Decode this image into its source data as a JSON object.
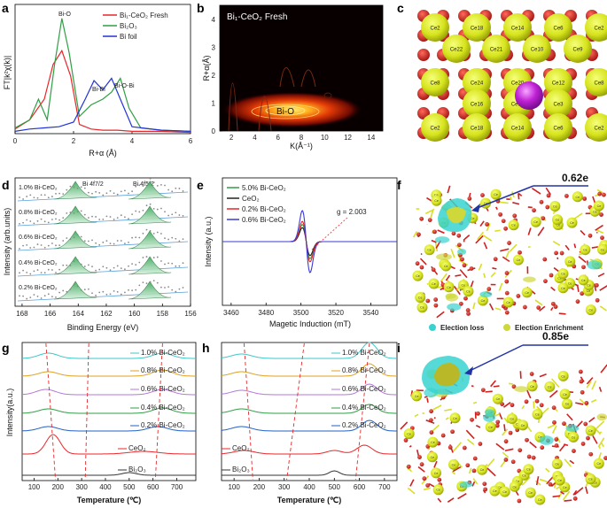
{
  "panels": {
    "a": {
      "letter": "a",
      "ylabel": "FT|k²χ(k)|",
      "xlabel": "R+α (Å)",
      "xticks": [
        "0",
        "2",
        "4",
        "6"
      ],
      "legend": [
        "Bi₁-CeO₂ Fresh",
        "Bi₂O₃",
        "Bi foil"
      ],
      "annotations": [
        "Bi-O",
        "Bi-Bi",
        "Bi-O-Bi"
      ],
      "colors": [
        "#e8262a",
        "#2f9e44",
        "#2233d6"
      ]
    },
    "b": {
      "letter": "b",
      "title": "Bi₁-CeO₂ Fresh",
      "ylabel": "R+α(Å)",
      "xlabel": "K(Å⁻¹)",
      "xticks": [
        "2",
        "4",
        "6",
        "8",
        "10",
        "12",
        "14"
      ],
      "yticks": [
        "0",
        "1",
        "2",
        "3",
        "4"
      ],
      "annotation": "Bi-O"
    },
    "c": {
      "letter": "c",
      "rows": [
        [
          "Ce2",
          "Ce18",
          "Ce14",
          "Ce6",
          "Ce2"
        ],
        [
          "Ce22",
          "Ce21",
          "Ce10",
          "Ce9"
        ],
        [
          "Ce8",
          "Ce24",
          "Ce20",
          "Ce12",
          "Ce8"
        ],
        [
          "Ce16",
          "Ce15",
          "Ce3"
        ],
        [
          "Ce2",
          "Ce18",
          "Ce14",
          "Ce6",
          "Ce2"
        ]
      ]
    },
    "d": {
      "letter": "d",
      "peaks": [
        "Bi 4f7/2",
        "Bi 4f5/2"
      ],
      "ylabel": "Intensity (arb.units)",
      "xlabel": "Binding Energy (eV)",
      "xticks": [
        "168",
        "166",
        "164",
        "162",
        "160",
        "158",
        "156"
      ],
      "samples": [
        "1.0% Bi-CeO₂",
        "0.8% Bi-CeO₂",
        "0.6% Bi-CeO₂",
        "0.4% Bi-CeO₂",
        "0.2% Bi-CeO₂"
      ]
    },
    "e": {
      "letter": "e",
      "ylabel": "Intensity (a.u.)",
      "xlabel": "Magetic Induction (mT)",
      "xticks": [
        "3460",
        "3480",
        "3500",
        "3520",
        "3540"
      ],
      "legend": [
        "5.0% Bi-CeO₂",
        "CeO₂",
        "0.2% Bi-CeO₂",
        "0.6% Bi-CeO₂"
      ],
      "colors": [
        "#2f9e44",
        "#222222",
        "#e8262a",
        "#3b3bd6"
      ],
      "annotation": "g = 2.003"
    },
    "f": {
      "letter": "f",
      "value": "0.62e",
      "legend": [
        "Election loss",
        "Election Enrichment"
      ]
    },
    "g": {
      "letter": "g",
      "ylabel": "Intensity(a.u.)",
      "xlabel": "Temperature (℃)",
      "xticks": [
        "100",
        "200",
        "300",
        "400",
        "500",
        "600",
        "700"
      ],
      "series": [
        "1.0% Bi-CeO₂",
        "0.8% Bi-CeO₂",
        "0.6% Bi-CeO₂",
        "0.4% Bi-CeO₂",
        "0.2% Bi-CeO₂",
        "CeO₂",
        "Bi₂O₃"
      ]
    },
    "h": {
      "letter": "h",
      "xlabel": "Temperature (℃)",
      "xticks": [
        "100",
        "200",
        "300",
        "400",
        "500",
        "600",
        "700"
      ],
      "series": [
        "1.0% Bi-CeO₂",
        "0.8% Bi-CeO₂",
        "0.6% Bi-CeO₂",
        "0.4% Bi-CeO₂",
        "0.2% Bi-CeO₂",
        "CeO₂",
        "Bi₂O₃"
      ]
    },
    "i": {
      "letter": "i",
      "value": "0.85e"
    }
  },
  "chart_data": [
    {
      "type": "line",
      "panel": "a",
      "xlabel": "R+α (Å)",
      "ylabel": "FT|k²χ(k)|",
      "xlim": [
        0,
        6
      ],
      "series": [
        {
          "name": "Bi₁-CeO₂ Fresh",
          "x": [
            0,
            0.5,
            1.0,
            1.3,
            1.6,
            1.9,
            2.2,
            2.6,
            3.0,
            3.5,
            4.0,
            5.0,
            6.0
          ],
          "y": [
            0.04,
            0.12,
            0.3,
            0.6,
            0.72,
            0.5,
            0.08,
            0.04,
            0.03,
            0.03,
            0.02,
            0.02,
            0.01
          ]
        },
        {
          "name": "Bi₂O₃",
          "x": [
            0,
            0.5,
            0.8,
            1.1,
            1.35,
            1.6,
            1.85,
            2.2,
            2.6,
            3.0,
            3.3,
            3.6,
            3.9,
            4.3,
            5.0,
            6.0
          ],
          "y": [
            0.05,
            0.12,
            0.3,
            0.12,
            0.6,
            1.0,
            0.7,
            0.15,
            0.25,
            0.3,
            0.36,
            0.48,
            0.22,
            0.05,
            0.03,
            0.02
          ]
        },
        {
          "name": "Bi foil",
          "x": [
            0,
            0.5,
            1.0,
            1.5,
            2.0,
            2.4,
            2.7,
            3.0,
            3.3,
            3.6,
            4.0,
            5.0,
            6.0
          ],
          "y": [
            0.02,
            0.04,
            0.05,
            0.06,
            0.1,
            0.3,
            0.46,
            0.38,
            0.48,
            0.3,
            0.06,
            0.03,
            0.02
          ]
        }
      ]
    },
    {
      "type": "heatmap",
      "panel": "b",
      "xlabel": "K(Å⁻¹)",
      "ylabel": "R+α(Å)",
      "xlim": [
        1,
        15
      ],
      "ylim": [
        0,
        4.5
      ],
      "peak": {
        "k": 6,
        "r": 1.6
      }
    },
    {
      "type": "line",
      "panel": "e",
      "xlabel": "Magetic Induction (mT)",
      "ylabel": "Intensity (a.u.)",
      "xlim": [
        3455,
        3555
      ],
      "center": 3503,
      "amplitudes": [
        0.55,
        0.45,
        0.65,
        1.0
      ]
    },
    {
      "type": "line",
      "panel": "g",
      "xlabel": "Temperature (℃)",
      "ylabel": "Intensity(a.u.)",
      "xlim": [
        50,
        780
      ]
    },
    {
      "type": "line",
      "panel": "h",
      "xlabel": "Temperature (℃)",
      "xlim": [
        50,
        750
      ]
    }
  ]
}
